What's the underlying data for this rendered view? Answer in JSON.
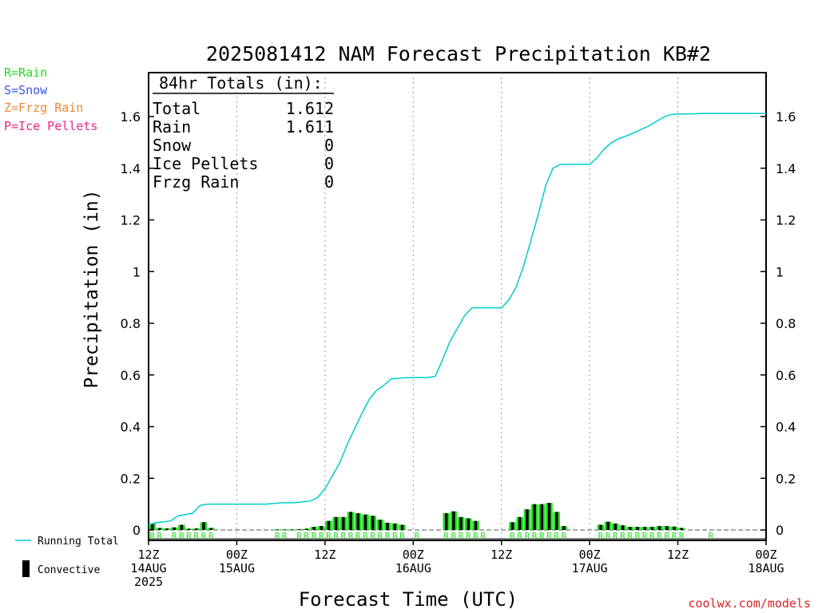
{
  "page": {
    "title": "2025081412 NAM Forecast Precipitation KB#2",
    "credit": "coolwx.com/models"
  },
  "type_legend": [
    {
      "code": "R",
      "label": "R=Rain",
      "color": "#22dd22"
    },
    {
      "code": "S",
      "label": "S=Snow",
      "color": "#3355ee"
    },
    {
      "code": "Z",
      "label": "Z=Frzg Rain",
      "color": "#ee8833"
    },
    {
      "code": "P",
      "label": "P=Ice Pellets",
      "color": "#ee2288"
    }
  ],
  "totals_box": {
    "heading": "84hr Totals (in):",
    "rows": [
      {
        "label": "Total",
        "value": "1.612"
      },
      {
        "label": "Rain",
        "value": "1.611"
      },
      {
        "label": "Snow",
        "value": "0"
      },
      {
        "label": "Ice Pellets",
        "value": "0"
      },
      {
        "label": "Frzg Rain",
        "value": "0"
      }
    ]
  },
  "series_legend": {
    "running_total": "Running Total",
    "convective": "Convective"
  },
  "colors": {
    "running_total": "#00cccc",
    "precip_bar": "#22dd22",
    "convective_bar": "#000000",
    "rain_marker": "#22dd22",
    "credit": "#dd2222"
  },
  "chart_data": {
    "type": "bar",
    "title": "2025081412 NAM Forecast Precipitation KB#2",
    "xlabel": "Forecast Time (UTC)",
    "ylabel": "Precipitation (in)",
    "ylim": [
      -0.04,
      1.78
    ],
    "xlim_hours": [
      0,
      84
    ],
    "grid": "vertical dotted lines every 12 hours",
    "yticks": [
      {
        "value": 0,
        "label": "0"
      },
      {
        "value": 0.2,
        "label": "0.2"
      },
      {
        "value": 0.4,
        "label": "0.4"
      },
      {
        "value": 0.6,
        "label": "0.6"
      },
      {
        "value": 0.8,
        "label": "0.8"
      },
      {
        "value": 1.0,
        "label": "1"
      },
      {
        "value": 1.2,
        "label": "1.2"
      },
      {
        "value": 1.4,
        "label": "1.4"
      },
      {
        "value": 1.6,
        "label": "1.6"
      }
    ],
    "xticks": [
      {
        "hour": 0,
        "lines": [
          "12Z",
          "14AUG",
          "2025"
        ]
      },
      {
        "hour": 12,
        "lines": [
          "00Z",
          "15AUG"
        ]
      },
      {
        "hour": 24,
        "lines": [
          "12Z"
        ]
      },
      {
        "hour": 36,
        "lines": [
          "00Z",
          "16AUG"
        ]
      },
      {
        "hour": 48,
        "lines": [
          "12Z"
        ]
      },
      {
        "hour": 60,
        "lines": [
          "00Z",
          "17AUG"
        ]
      },
      {
        "hour": 72,
        "lines": [
          "12Z"
        ]
      },
      {
        "hour": 84,
        "lines": [
          "00Z",
          "18AUG"
        ]
      }
    ],
    "series": [
      {
        "name": "Running Total",
        "kind": "line",
        "points": [
          [
            0,
            0.02
          ],
          [
            1,
            0.028
          ],
          [
            3,
            0.035
          ],
          [
            4,
            0.055
          ],
          [
            5,
            0.06
          ],
          [
            6,
            0.065
          ],
          [
            7,
            0.095
          ],
          [
            8,
            0.1
          ],
          [
            9,
            0.1
          ],
          [
            10,
            0.1
          ],
          [
            12,
            0.1
          ],
          [
            14,
            0.1
          ],
          [
            16,
            0.1
          ],
          [
            18,
            0.105
          ],
          [
            20,
            0.106
          ],
          [
            22,
            0.112
          ],
          [
            23,
            0.125
          ],
          [
            24,
            0.16
          ],
          [
            25,
            0.21
          ],
          [
            26,
            0.26
          ],
          [
            27,
            0.33
          ],
          [
            28,
            0.39
          ],
          [
            29,
            0.45
          ],
          [
            30,
            0.505
          ],
          [
            31,
            0.54
          ],
          [
            32,
            0.56
          ],
          [
            33,
            0.585
          ],
          [
            34,
            0.587
          ],
          [
            35,
            0.589
          ],
          [
            36,
            0.59
          ],
          [
            37,
            0.59
          ],
          [
            38,
            0.59
          ],
          [
            39,
            0.595
          ],
          [
            40,
            0.66
          ],
          [
            41,
            0.73
          ],
          [
            42,
            0.78
          ],
          [
            43,
            0.83
          ],
          [
            44,
            0.86
          ],
          [
            45,
            0.86
          ],
          [
            46,
            0.86
          ],
          [
            47,
            0.86
          ],
          [
            48,
            0.86
          ],
          [
            49,
            0.89
          ],
          [
            50,
            0.94
          ],
          [
            51,
            1.02
          ],
          [
            52,
            1.12
          ],
          [
            53,
            1.22
          ],
          [
            54,
            1.33
          ],
          [
            55,
            1.4
          ],
          [
            56,
            1.415
          ],
          [
            57,
            1.415
          ],
          [
            58,
            1.415
          ],
          [
            59,
            1.415
          ],
          [
            60,
            1.415
          ],
          [
            61,
            1.44
          ],
          [
            62,
            1.475
          ],
          [
            63,
            1.5
          ],
          [
            64,
            1.515
          ],
          [
            65,
            1.525
          ],
          [
            66,
            1.537
          ],
          [
            67,
            1.55
          ],
          [
            68,
            1.563
          ],
          [
            69,
            1.58
          ],
          [
            70,
            1.597
          ],
          [
            71,
            1.607
          ],
          [
            72,
            1.61
          ],
          [
            73,
            1.61
          ],
          [
            74,
            1.61
          ],
          [
            75,
            1.612
          ],
          [
            84,
            1.612
          ]
        ]
      },
      {
        "name": "Hourly Precipitation",
        "kind": "bar",
        "hour_values": [
          [
            0,
            0.025
          ],
          [
            1,
            0.008
          ],
          [
            2,
            0.006
          ],
          [
            3,
            0.01
          ],
          [
            4,
            0.02
          ],
          [
            5,
            0.005
          ],
          [
            6,
            0.006
          ],
          [
            7,
            0.03
          ],
          [
            8,
            0.008
          ],
          [
            17,
            0.002
          ],
          [
            18,
            0.002
          ],
          [
            19,
            0.002
          ],
          [
            20,
            0.003
          ],
          [
            21,
            0.005
          ],
          [
            22,
            0.012
          ],
          [
            23,
            0.015
          ],
          [
            24,
            0.035
          ],
          [
            25,
            0.05
          ],
          [
            26,
            0.05
          ],
          [
            27,
            0.07
          ],
          [
            28,
            0.065
          ],
          [
            29,
            0.06
          ],
          [
            30,
            0.055
          ],
          [
            31,
            0.04
          ],
          [
            32,
            0.028
          ],
          [
            33,
            0.025
          ],
          [
            34,
            0.02
          ],
          [
            40,
            0.065
          ],
          [
            41,
            0.072
          ],
          [
            42,
            0.05
          ],
          [
            43,
            0.045
          ],
          [
            44,
            0.035
          ],
          [
            49,
            0.03
          ],
          [
            50,
            0.05
          ],
          [
            51,
            0.08
          ],
          [
            52,
            0.1
          ],
          [
            53,
            0.1
          ],
          [
            54,
            0.105
          ],
          [
            55,
            0.07
          ],
          [
            56,
            0.015
          ],
          [
            61,
            0.02
          ],
          [
            62,
            0.032
          ],
          [
            63,
            0.025
          ],
          [
            64,
            0.018
          ],
          [
            65,
            0.012
          ],
          [
            66,
            0.012
          ],
          [
            67,
            0.012
          ],
          [
            68,
            0.012
          ],
          [
            69,
            0.015
          ],
          [
            70,
            0.015
          ],
          [
            71,
            0.013
          ],
          [
            72,
            0.008
          ]
        ]
      }
    ],
    "type_markers": [
      {
        "hour": 0,
        "type": "R"
      },
      {
        "hour": 1,
        "type": "R"
      },
      {
        "hour": 3,
        "type": "R"
      },
      {
        "hour": 4,
        "type": "R"
      },
      {
        "hour": 5,
        "type": "R"
      },
      {
        "hour": 6,
        "type": "R"
      },
      {
        "hour": 7,
        "type": "R"
      },
      {
        "hour": 8,
        "type": "R"
      },
      {
        "hour": 17,
        "type": "R"
      },
      {
        "hour": 18,
        "type": "R"
      },
      {
        "hour": 20,
        "type": "R"
      },
      {
        "hour": 21,
        "type": "R"
      },
      {
        "hour": 22,
        "type": "R"
      },
      {
        "hour": 23,
        "type": "R"
      },
      {
        "hour": 24,
        "type": "R"
      },
      {
        "hour": 25,
        "type": "R"
      },
      {
        "hour": 26,
        "type": "R"
      },
      {
        "hour": 27,
        "type": "R"
      },
      {
        "hour": 28,
        "type": "R"
      },
      {
        "hour": 29,
        "type": "R"
      },
      {
        "hour": 30,
        "type": "R"
      },
      {
        "hour": 31,
        "type": "R"
      },
      {
        "hour": 32,
        "type": "R"
      },
      {
        "hour": 33,
        "type": "R"
      },
      {
        "hour": 34,
        "type": "R"
      },
      {
        "hour": 36,
        "type": "R"
      },
      {
        "hour": 40,
        "type": "R"
      },
      {
        "hour": 41,
        "type": "R"
      },
      {
        "hour": 42,
        "type": "R"
      },
      {
        "hour": 43,
        "type": "R"
      },
      {
        "hour": 44,
        "type": "R"
      },
      {
        "hour": 45,
        "type": "R"
      },
      {
        "hour": 49,
        "type": "R"
      },
      {
        "hour": 50,
        "type": "R"
      },
      {
        "hour": 51,
        "type": "R"
      },
      {
        "hour": 52,
        "type": "R"
      },
      {
        "hour": 53,
        "type": "R"
      },
      {
        "hour": 54,
        "type": "R"
      },
      {
        "hour": 55,
        "type": "R"
      },
      {
        "hour": 56,
        "type": "R"
      },
      {
        "hour": 61,
        "type": "R"
      },
      {
        "hour": 62,
        "type": "R"
      },
      {
        "hour": 63,
        "type": "R"
      },
      {
        "hour": 64,
        "type": "R"
      },
      {
        "hour": 65,
        "type": "R"
      },
      {
        "hour": 66,
        "type": "R"
      },
      {
        "hour": 67,
        "type": "R"
      },
      {
        "hour": 68,
        "type": "R"
      },
      {
        "hour": 69,
        "type": "R"
      },
      {
        "hour": 70,
        "type": "R"
      },
      {
        "hour": 71,
        "type": "R"
      },
      {
        "hour": 72,
        "type": "R"
      },
      {
        "hour": 76,
        "type": "R"
      }
    ]
  }
}
